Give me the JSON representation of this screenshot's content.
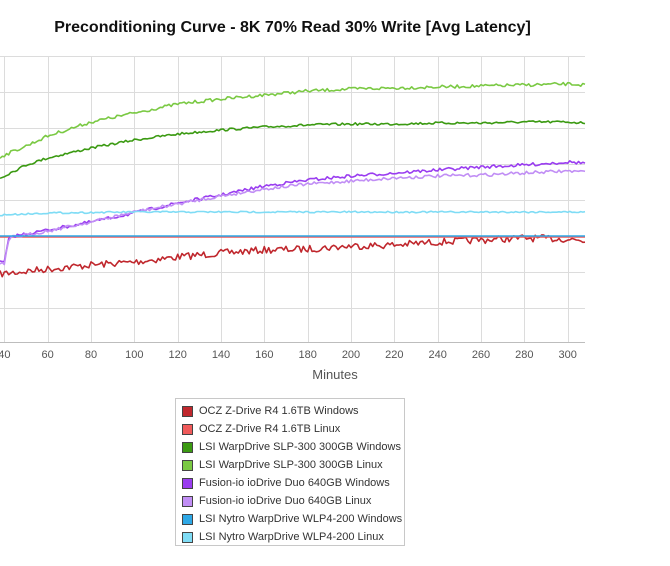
{
  "title": "Preconditioning Curve - 8K 70% Read 30% Write [Avg Latency]",
  "chart_data": {
    "type": "line",
    "title": "Preconditioning Curve - 8K 70% Read 30% Write [Avg Latency]",
    "xlabel": "Minutes",
    "ylabel": "",
    "xlim": [
      38,
      308
    ],
    "xticks": [
      40,
      60,
      80,
      100,
      120,
      140,
      160,
      180,
      200,
      220,
      240,
      260,
      280,
      300
    ],
    "xtick_labels": [
      "40",
      "60",
      "80",
      "100",
      "120",
      "140",
      "160",
      "180",
      "200",
      "220",
      "240",
      "260",
      "280",
      "300"
    ],
    "grid": true,
    "legend_position": "bottom",
    "series": [
      {
        "name": "OCZ Z-Drive R4 1.6TB Windows",
        "color": "#c0272d",
        "x": [
          38,
          60,
          80,
          100,
          120,
          140,
          160,
          180,
          200,
          220,
          240,
          260,
          280,
          300,
          308
        ],
        "y": [
          274,
          269,
          265,
          262,
          257,
          253,
          250,
          249,
          246,
          245,
          242,
          240,
          238,
          239,
          241
        ]
      },
      {
        "name": "OCZ Z-Drive R4 1.6TB Linux",
        "color": "#f05a5a",
        "x": [
          38,
          308
        ],
        "y": [
          237,
          237
        ]
      },
      {
        "name": "LSI WarpDrive SLP-300 300GB Windows",
        "color": "#3b9a12",
        "x": [
          38,
          50,
          60,
          80,
          100,
          120,
          140,
          160,
          180,
          200,
          220,
          240,
          260,
          280,
          300,
          308
        ],
        "y": [
          178,
          165,
          158,
          148,
          140,
          134,
          130,
          127,
          125,
          124,
          124,
          123,
          123,
          122,
          122,
          123
        ]
      },
      {
        "name": "LSI WarpDrive SLP-300 300GB Linux",
        "color": "#7ac943",
        "x": [
          38,
          50,
          60,
          80,
          100,
          120,
          140,
          160,
          180,
          200,
          220,
          240,
          260,
          280,
          300,
          308
        ],
        "y": [
          157,
          146,
          136,
          122,
          113,
          104,
          99,
          95,
          91,
          89,
          88,
          87,
          86,
          85,
          84,
          85
        ]
      },
      {
        "name": "Fusion-io ioDrive Duo 640GB Windows",
        "color": "#9a3df0",
        "x": [
          38,
          40,
          42,
          44,
          50,
          60,
          80,
          100,
          120,
          140,
          160,
          180,
          200,
          220,
          240,
          260,
          280,
          300,
          308
        ],
        "y": [
          262,
          262,
          240,
          236,
          234,
          230,
          222,
          213,
          203,
          195,
          186,
          180,
          176,
          173,
          170,
          167,
          165,
          162,
          163
        ]
      },
      {
        "name": "Fusion-io ioDrive Duo 640GB Linux",
        "color": "#c18ef5",
        "x": [
          38,
          40,
          42,
          44,
          50,
          60,
          80,
          100,
          120,
          140,
          160,
          180,
          200,
          220,
          240,
          260,
          280,
          300,
          308
        ],
        "y": [
          264,
          264,
          241,
          237,
          235,
          231,
          222,
          212,
          204,
          196,
          189,
          184,
          181,
          178,
          176,
          175,
          173,
          171,
          172
        ]
      },
      {
        "name": "LSI Nytro WarpDrive WLP4-200 Windows",
        "color": "#2ea8e6",
        "x": [
          38,
          308
        ],
        "y": [
          236,
          236
        ]
      },
      {
        "name": "LSI Nytro WarpDrive WLP4-200 Linux",
        "color": "#7fdcf5",
        "x": [
          38,
          60,
          100,
          140,
          180,
          220,
          260,
          300,
          308
        ],
        "y": [
          215,
          213,
          212,
          212,
          212,
          212,
          212,
          212,
          212
        ]
      }
    ]
  }
}
